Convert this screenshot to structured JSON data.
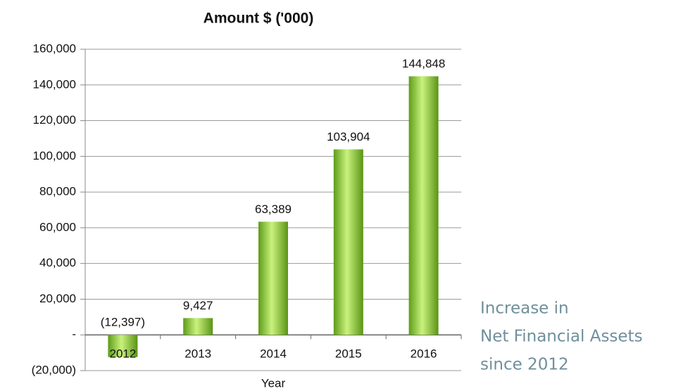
{
  "chart_data": {
    "type": "bar",
    "title": "Amount $ ('000)",
    "x_label": "Year",
    "categories": [
      "2012",
      "2013",
      "2014",
      "2015",
      "2016"
    ],
    "values": [
      -12397,
      9427,
      63389,
      103904,
      144848
    ],
    "value_labels": [
      "(12,397)",
      "9,427",
      "63,389",
      "103,904",
      "144,848"
    ],
    "color": "#7cc02c",
    "ylim": [
      -20000,
      160000
    ],
    "yticks": [
      {
        "value": -20000,
        "label": "(20,000)"
      },
      {
        "value": 0,
        "label": "-"
      },
      {
        "value": 20000,
        "label": "20,000"
      },
      {
        "value": 40000,
        "label": "40,000"
      },
      {
        "value": 60000,
        "label": "60,000"
      },
      {
        "value": 80000,
        "label": "80,000"
      },
      {
        "value": 100000,
        "label": "100,000"
      },
      {
        "value": 120000,
        "label": "120,000"
      },
      {
        "value": 140000,
        "label": "140,000"
      },
      {
        "value": 160000,
        "label": "160,000"
      }
    ],
    "grid": true,
    "annotation": [
      "Increase in",
      "Net Financial Assets",
      "since 2012"
    ]
  }
}
